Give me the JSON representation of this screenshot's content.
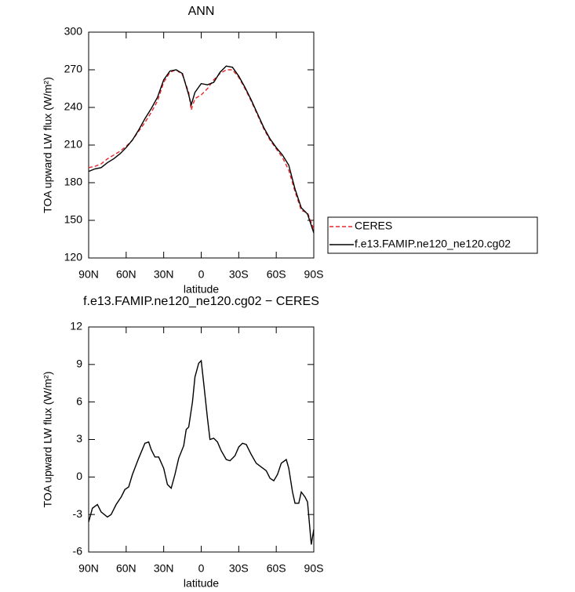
{
  "chart_data": [
    {
      "type": "line",
      "title": "ANN",
      "xlabel": "latitude",
      "ylabel": "TOA upward LW flux (W/m²)",
      "xlim": [
        90,
        -90
      ],
      "xticks": [
        {
          "value": 90,
          "label": "90N"
        },
        {
          "value": 60,
          "label": "60N"
        },
        {
          "value": 30,
          "label": "30N"
        },
        0,
        {
          "value": -30,
          "label": "30S"
        },
        {
          "value": -60,
          "label": "60S"
        },
        {
          "value": -90,
          "label": "90S"
        }
      ],
      "ylim": [
        120,
        300
      ],
      "yticks": [
        120,
        150,
        180,
        210,
        240,
        270,
        300
      ],
      "legend": "outside-right",
      "x": [
        90,
        85,
        80,
        75,
        70,
        65,
        60,
        55,
        50,
        45,
        40,
        35,
        30,
        25,
        20,
        15,
        10,
        8,
        5,
        0,
        -5,
        -10,
        -15,
        -20,
        -25,
        -30,
        -35,
        -40,
        -45,
        -50,
        -55,
        -60,
        -65,
        -70,
        -75,
        -80,
        -85,
        -90
      ],
      "series": [
        {
          "name": "CERES",
          "color": "#e8262a",
          "style": "dashed",
          "values": [
            192,
            193,
            195,
            199,
            202,
            205,
            209,
            214,
            221,
            228,
            236,
            245,
            260,
            268,
            270,
            266,
            252,
            238,
            247,
            250,
            255,
            262,
            267,
            270,
            270,
            264,
            255,
            245,
            234,
            223,
            214,
            207,
            200,
            190,
            173,
            158,
            156,
            143
          ]
        },
        {
          "name": "f.e13.FAMIP.ne120_ne120.cg02",
          "color": "#000000",
          "style": "solid",
          "values": [
            189,
            191,
            192,
            196,
            199,
            203,
            208,
            214,
            222,
            231,
            239,
            248,
            262,
            269,
            270,
            267,
            250,
            242,
            252,
            259,
            258,
            260,
            268,
            273,
            272,
            265,
            256,
            246,
            235,
            224,
            215,
            208,
            202,
            194,
            175,
            160,
            155,
            140
          ]
        }
      ]
    },
    {
      "type": "line",
      "title": "f.e13.FAMIP.ne120_ne120.cg02 − CERES",
      "xlabel": "latitude",
      "ylabel": "TOA upward LW flux (W/m²)",
      "xlim": [
        90,
        -90
      ],
      "xticks": [
        {
          "value": 90,
          "label": "90N"
        },
        {
          "value": 60,
          "label": "60N"
        },
        {
          "value": 30,
          "label": "30N"
        },
        0,
        {
          "value": -30,
          "label": "30S"
        },
        {
          "value": -60,
          "label": "60S"
        },
        {
          "value": -90,
          "label": "90S"
        }
      ],
      "ylim": [
        -6,
        12
      ],
      "yticks": [
        -6,
        -3,
        0,
        3,
        6,
        9,
        12
      ],
      "x": [
        90,
        87,
        83,
        80,
        75,
        72,
        68,
        64,
        61,
        58,
        55,
        50,
        45,
        42,
        40,
        37,
        34,
        30,
        27,
        24,
        21,
        18,
        14,
        12,
        10,
        7,
        5,
        2,
        0,
        -2,
        -5,
        -7,
        -10,
        -13,
        -16,
        -20,
        -23,
        -27,
        -30,
        -33,
        -36,
        -40,
        -44,
        -48,
        -52,
        -55,
        -58,
        -61,
        -64,
        -68,
        -70,
        -73,
        -75,
        -78,
        -80,
        -83,
        -85,
        -88,
        -90
      ],
      "series": [
        {
          "color": "#000000",
          "style": "solid",
          "values": [
            -3.6,
            -2.5,
            -2.2,
            -2.8,
            -3.2,
            -3.0,
            -2.2,
            -1.6,
            -1.0,
            -0.8,
            0.2,
            1.5,
            2.7,
            2.8,
            2.2,
            1.6,
            1.6,
            0.7,
            -0.6,
            -0.9,
            0.2,
            1.5,
            2.5,
            3.8,
            4.0,
            6,
            8,
            9.1,
            9.3,
            7.5,
            4.7,
            3.0,
            3.1,
            2.8,
            2.1,
            1.4,
            1.3,
            1.7,
            2.4,
            2.7,
            2.6,
            1.8,
            1.1,
            0.8,
            0.5,
            -0.1,
            -0.3,
            0.2,
            1.1,
            1.4,
            0.7,
            -1.2,
            -2.1,
            -2.1,
            -1.2,
            -1.6,
            -2.0,
            -5.4,
            -4.2
          ]
        }
      ]
    }
  ]
}
